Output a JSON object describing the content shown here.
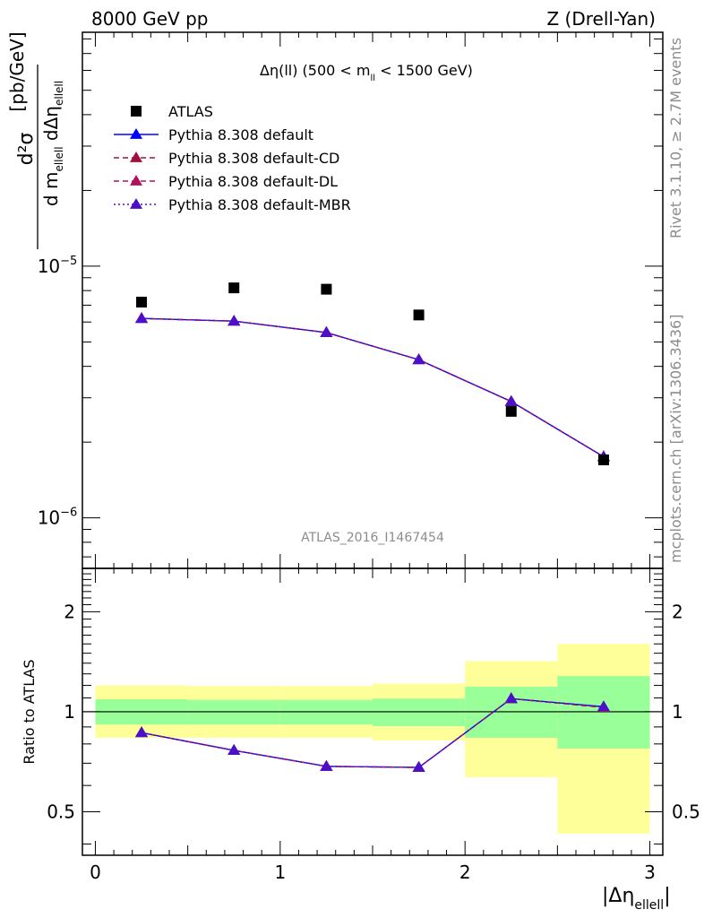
{
  "header": {
    "left": "8000 GeV pp",
    "right": "Z (Drell-Yan)"
  },
  "side": {
    "rivet": "Rivet 3.1.10, ≥ 2.7M events",
    "mcplots": "mcplots.cern.ch [arXiv:1306.3436]"
  },
  "watermark": "ATLAS_2016_I1467454",
  "chart_data": {
    "type": "line",
    "title": {
      "main": "Δη(ll) (500 < m",
      "sub": "ll",
      "rest": " < 1500 GeV)"
    },
    "ylabel": {
      "num": "d²σ",
      "den_d": "d m",
      "den_sub1": "ellell",
      "den_mid": " dΔη",
      "den_sub2": "ellell",
      "unit": "[pb/GeV]"
    },
    "xlabel": {
      "main": "|Δη",
      "sub": "ellell",
      "end": "|"
    },
    "ratio_ylabel": "Ratio to ATLAS",
    "upper": {
      "yscale": "log",
      "ylim": [
        6.3e-07,
        8.5e-05
      ],
      "ytick_labels": [
        {
          "value": 1e-05,
          "mant": "10",
          "exp": "−5"
        },
        {
          "value": 1e-06,
          "mant": "10",
          "exp": "−6"
        }
      ]
    },
    "lower": {
      "yscale": "log",
      "ylim": [
        0.37,
        2.7
      ],
      "ytick_labels": [
        {
          "value": 2,
          "label": "2"
        },
        {
          "value": 1,
          "label": "1"
        },
        {
          "value": 0.5,
          "label": "0.5"
        }
      ]
    },
    "xlim": [
      -0.07,
      3.07
    ],
    "xtick_labels": [
      {
        "value": 0,
        "label": "0"
      },
      {
        "value": 1,
        "label": "1"
      },
      {
        "value": 2,
        "label": "2"
      },
      {
        "value": 3,
        "label": "3"
      }
    ],
    "bins": [
      [
        0,
        0.5
      ],
      [
        0.5,
        1.0
      ],
      [
        1.0,
        1.5
      ],
      [
        1.5,
        2.0
      ],
      [
        2.0,
        2.5
      ],
      [
        2.5,
        3.0
      ]
    ],
    "x": [
      0.25,
      0.75,
      1.25,
      1.75,
      2.25,
      2.75
    ],
    "bands": {
      "green_low": [
        0.915,
        0.915,
        0.915,
        0.905,
        0.835,
        0.775
      ],
      "green_high": [
        1.09,
        1.085,
        1.085,
        1.095,
        1.19,
        1.28
      ],
      "yellow_low": [
        0.835,
        0.835,
        0.835,
        0.82,
        0.635,
        0.43
      ],
      "yellow_high": [
        1.2,
        1.195,
        1.195,
        1.215,
        1.42,
        1.6
      ]
    },
    "series": [
      {
        "name": "ATLAS",
        "color": "#000000",
        "marker": "square",
        "line": "none",
        "values": [
          7.2e-06,
          8.2e-06,
          8.1e-06,
          6.4e-06,
          2.65e-06,
          1.7e-06
        ]
      },
      {
        "name": "Pythia 8.308 default",
        "color": "#0000ff",
        "marker": "triangle",
        "line": "solid",
        "values": [
          6.2e-06,
          6.05e-06,
          5.45e-06,
          4.25e-06,
          2.9e-06,
          1.75e-06
        ],
        "ratio": [
          0.865,
          0.765,
          0.685,
          0.68,
          1.095,
          1.035
        ]
      },
      {
        "name": "Pythia 8.308 default-CD",
        "color": "#a0103c",
        "marker": "triangle",
        "line": "dashed",
        "values": [
          6.2e-06,
          6.05e-06,
          5.45e-06,
          4.25e-06,
          2.9e-06,
          1.75e-06
        ],
        "ratio": [
          0.865,
          0.765,
          0.685,
          0.68,
          1.095,
          1.03
        ]
      },
      {
        "name": "Pythia 8.308 default-DL",
        "color": "#b0105a",
        "marker": "triangle",
        "line": "dashed",
        "values": [
          6.2e-06,
          6.05e-06,
          5.45e-06,
          4.25e-06,
          2.9e-06,
          1.75e-06
        ],
        "ratio": [
          0.865,
          0.765,
          0.685,
          0.68,
          1.095,
          1.03
        ]
      },
      {
        "name": "Pythia 8.308 default-MBR",
        "color": "#4b10c8",
        "marker": "triangle",
        "line": "dotted",
        "values": [
          6.2e-06,
          6.05e-06,
          5.45e-06,
          4.25e-06,
          2.9e-06,
          1.75e-06
        ],
        "ratio": [
          0.865,
          0.765,
          0.685,
          0.68,
          1.095,
          1.035
        ]
      }
    ],
    "colors": {
      "green_band": "#99ff99",
      "yellow_band": "#ffff99",
      "watermark": "#8c8c8c"
    },
    "grid": false,
    "legend_position": "top-left"
  }
}
